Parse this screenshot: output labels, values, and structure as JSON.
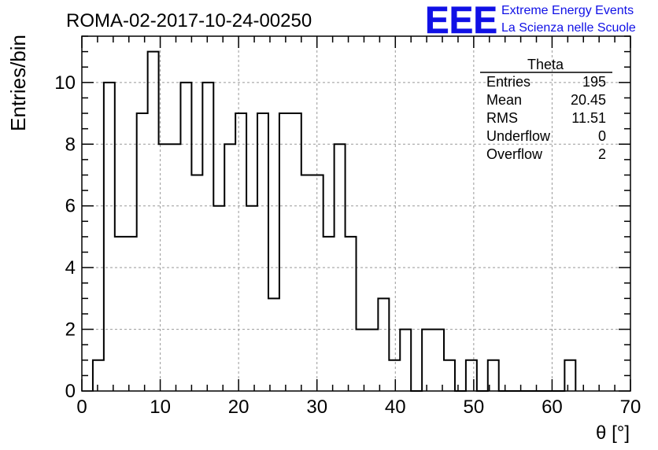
{
  "header": {
    "run_title": "ROMA-02-2017-10-24-00250",
    "logo_text": "EEE",
    "logo_line1": "Extreme Energy Events",
    "logo_line2": "La Scienza nelle Scuole",
    "logo_color": "#1010e6"
  },
  "stats_box": {
    "title": "Theta",
    "rows": [
      {
        "label": "Entries",
        "value": "195"
      },
      {
        "label": "Mean",
        "value": "20.45"
      },
      {
        "label": "RMS",
        "value": "11.51"
      },
      {
        "label": "Underflow",
        "value": "0"
      },
      {
        "label": "Overflow",
        "value": "2"
      }
    ]
  },
  "chart_data": {
    "type": "histogram",
    "xlabel": "θ [°]",
    "ylabel": "Entries/bin",
    "xlim": [
      0,
      70
    ],
    "ylim": [
      0,
      11.5
    ],
    "grid": true,
    "bin_width": 1.4,
    "x_start": 1.4,
    "values": [
      1,
      10,
      5,
      5,
      9,
      11,
      8,
      8,
      10,
      7,
      10,
      6,
      8,
      9,
      6,
      9,
      3,
      9,
      9,
      7,
      7,
      5,
      8,
      5,
      2,
      2,
      3,
      1,
      2,
      0,
      2,
      2,
      1,
      0,
      1,
      0,
      1,
      0,
      0,
      0,
      0,
      0,
      0,
      1
    ],
    "x_ticks": [
      0,
      10,
      20,
      30,
      40,
      50,
      60,
      70
    ],
    "y_ticks": [
      0,
      2,
      4,
      6,
      8,
      10
    ],
    "line_color": "#000000",
    "grid_color": "#999999"
  }
}
